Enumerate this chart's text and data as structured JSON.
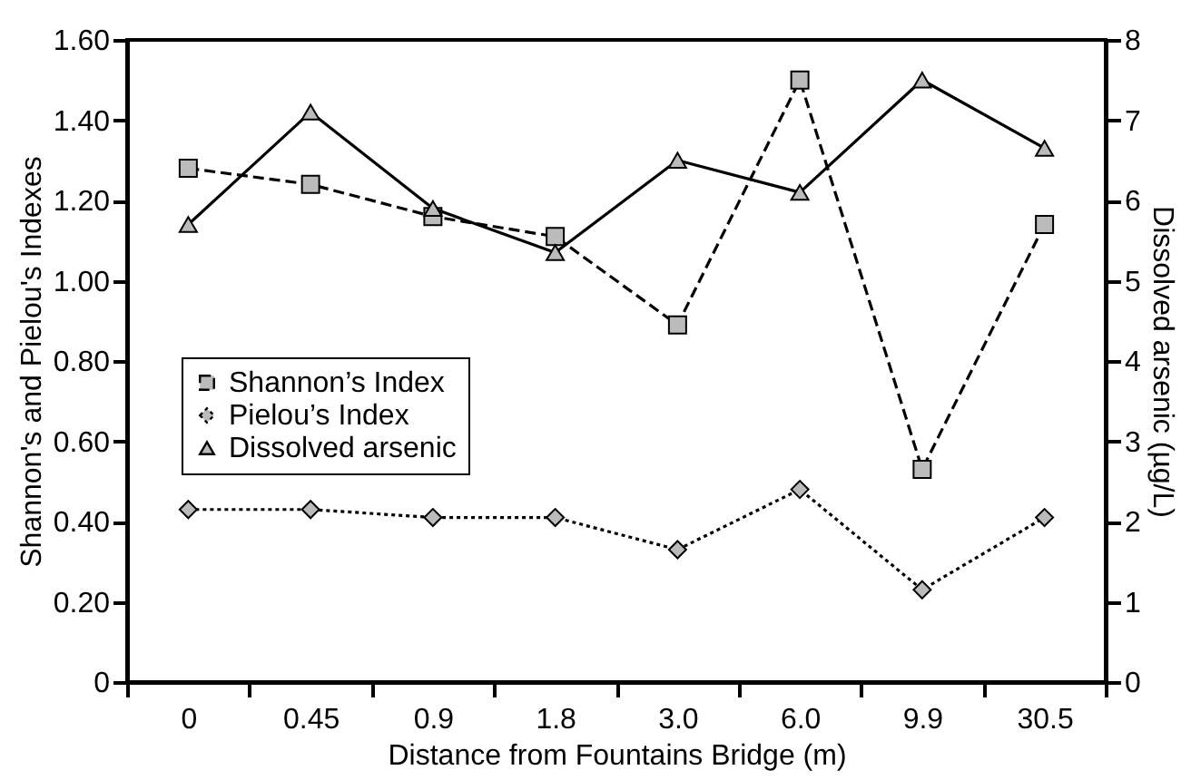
{
  "chart_data": {
    "type": "line",
    "xlabel": "Distance from Fountains Bridge (m)",
    "ylabel": "Shannon's and Pielou's Indexes",
    "y2label": "Dissolved arsenic (µg/L)",
    "categories": [
      "0",
      "0.45",
      "0.9",
      "1.8",
      "3.0",
      "6.0",
      "9.9",
      "30.5"
    ],
    "series": [
      {
        "name": "Shannon’s Index",
        "color": "#000000",
        "marker": "square",
        "line_style": "dashed",
        "values": [
          1.28,
          1.24,
          1.16,
          1.11,
          0.89,
          1.5,
          0.53,
          1.14
        ]
      },
      {
        "name": "Pielou’s Index",
        "color": "#000000",
        "marker": "diamond",
        "line_style": "dotted",
        "values": [
          0.43,
          0.43,
          0.41,
          0.41,
          0.33,
          0.48,
          0.23,
          0.41
        ]
      },
      {
        "name": "Dissolved arsenic",
        "color": "#000000",
        "marker": "triangle",
        "line_style": "solid",
        "axis": "y2",
        "values": [
          5.7,
          7.1,
          5.9,
          5.35,
          6.5,
          6.1,
          7.5,
          6.65
        ]
      }
    ],
    "ylim": [
      0,
      1.6
    ],
    "yticks": [
      0,
      {
        "value": 0.2,
        "label": "0.20"
      },
      {
        "value": 0.4,
        "label": "0.40"
      },
      {
        "value": 0.6,
        "label": "0.60"
      },
      {
        "value": 0.8,
        "label": "0.80"
      },
      {
        "value": 1.0,
        "label": "1.00"
      },
      {
        "value": 1.2,
        "label": "1.20"
      },
      {
        "value": 1.4,
        "label": "1.40"
      },
      {
        "value": 1.6,
        "label": "1.60"
      }
    ],
    "y2lim": [
      0,
      8
    ],
    "y2ticks": [
      0,
      1,
      2,
      3,
      4,
      5,
      6,
      7,
      8
    ],
    "legend": "left",
    "grid": false
  }
}
